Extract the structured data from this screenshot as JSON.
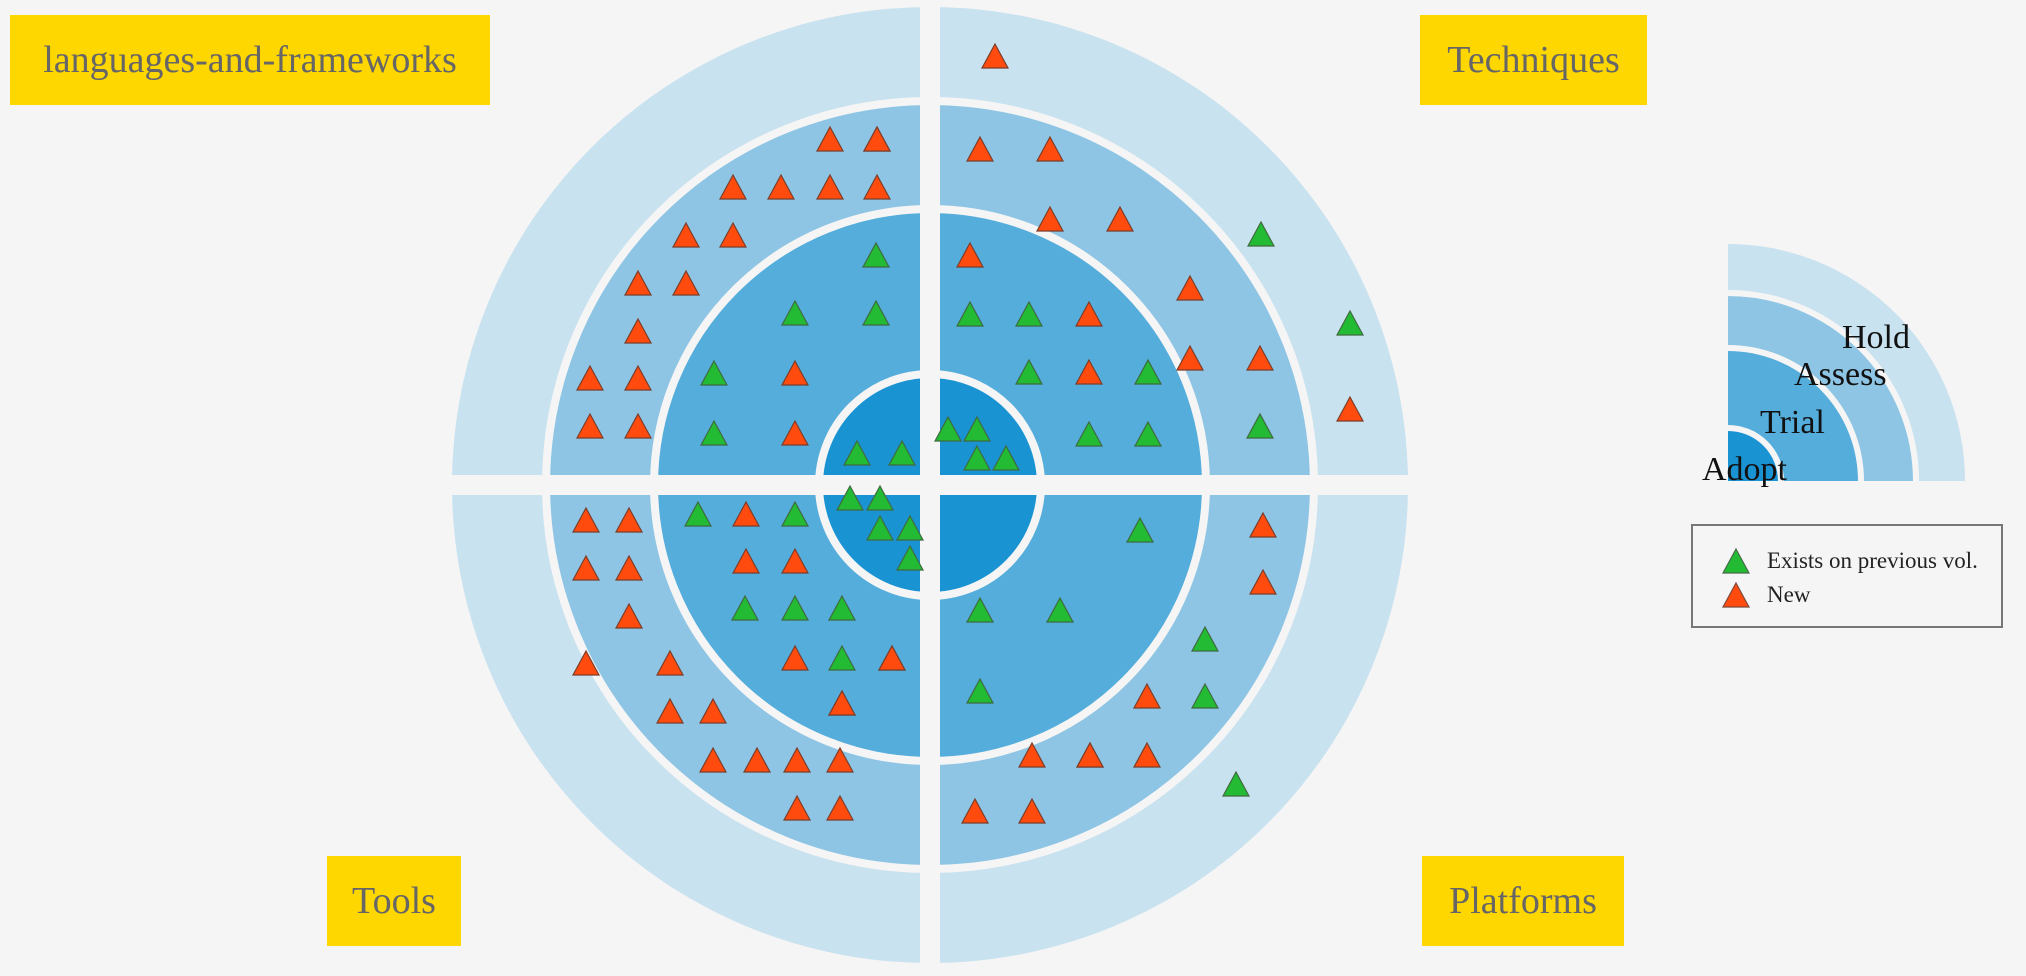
{
  "quadrants": [
    {
      "name": "languages-and-frameworks"
    },
    {
      "name": "Techniques"
    },
    {
      "name": "Tools"
    },
    {
      "name": "Platforms"
    }
  ],
  "rings": [
    {
      "name": "Adopt",
      "color": "#1a93d3"
    },
    {
      "name": "Trial",
      "color": "#55addc"
    },
    {
      "name": "Assess",
      "color": "#8ec5e4"
    },
    {
      "name": "Hold",
      "color": "#c9e2ef"
    }
  ],
  "legend": {
    "items": [
      {
        "label": "Exists on previous vol.",
        "status": "existing",
        "color": "#22bb33"
      },
      {
        "label": "New",
        "status": "new",
        "color": "#ff4b0e"
      }
    ]
  },
  "chart_data": {
    "type": "scatter",
    "description_units": "each blip is placed by quadrant and ring; order within the ring cell is its index",
    "blips": [
      {
        "quadrant": "languages-and-frameworks",
        "ring": "Adopt",
        "status": "existing"
      },
      {
        "quadrant": "languages-and-frameworks",
        "ring": "Adopt",
        "status": "existing"
      },
      {
        "quadrant": "languages-and-frameworks",
        "ring": "Trial",
        "status": "existing"
      },
      {
        "quadrant": "languages-and-frameworks",
        "ring": "Trial",
        "status": "existing"
      },
      {
        "quadrant": "languages-and-frameworks",
        "ring": "Trial",
        "status": "existing"
      },
      {
        "quadrant": "languages-and-frameworks",
        "ring": "Trial",
        "status": "existing"
      },
      {
        "quadrant": "languages-and-frameworks",
        "ring": "Trial",
        "status": "existing"
      },
      {
        "quadrant": "languages-and-frameworks",
        "ring": "Trial",
        "status": "new"
      },
      {
        "quadrant": "languages-and-frameworks",
        "ring": "Trial",
        "status": "new"
      },
      {
        "quadrant": "languages-and-frameworks",
        "ring": "Assess",
        "status": "new"
      },
      {
        "quadrant": "languages-and-frameworks",
        "ring": "Assess",
        "status": "new"
      },
      {
        "quadrant": "languages-and-frameworks",
        "ring": "Assess",
        "status": "new"
      },
      {
        "quadrant": "languages-and-frameworks",
        "ring": "Assess",
        "status": "new"
      },
      {
        "quadrant": "languages-and-frameworks",
        "ring": "Assess",
        "status": "new"
      },
      {
        "quadrant": "languages-and-frameworks",
        "ring": "Assess",
        "status": "new"
      },
      {
        "quadrant": "languages-and-frameworks",
        "ring": "Assess",
        "status": "new"
      },
      {
        "quadrant": "languages-and-frameworks",
        "ring": "Assess",
        "status": "new"
      },
      {
        "quadrant": "languages-and-frameworks",
        "ring": "Assess",
        "status": "new"
      },
      {
        "quadrant": "languages-and-frameworks",
        "ring": "Assess",
        "status": "new"
      },
      {
        "quadrant": "languages-and-frameworks",
        "ring": "Assess",
        "status": "new"
      },
      {
        "quadrant": "languages-and-frameworks",
        "ring": "Assess",
        "status": "new"
      },
      {
        "quadrant": "languages-and-frameworks",
        "ring": "Assess",
        "status": "new"
      },
      {
        "quadrant": "languages-and-frameworks",
        "ring": "Assess",
        "status": "new"
      },
      {
        "quadrant": "languages-and-frameworks",
        "ring": "Assess",
        "status": "new"
      },
      {
        "quadrant": "languages-and-frameworks",
        "ring": "Assess",
        "status": "new"
      },
      {
        "quadrant": "Techniques",
        "ring": "Adopt",
        "status": "existing"
      },
      {
        "quadrant": "Techniques",
        "ring": "Adopt",
        "status": "existing"
      },
      {
        "quadrant": "Techniques",
        "ring": "Adopt",
        "status": "existing"
      },
      {
        "quadrant": "Techniques",
        "ring": "Adopt",
        "status": "existing"
      },
      {
        "quadrant": "Techniques",
        "ring": "Trial",
        "status": "existing"
      },
      {
        "quadrant": "Techniques",
        "ring": "Trial",
        "status": "existing"
      },
      {
        "quadrant": "Techniques",
        "ring": "Trial",
        "status": "existing"
      },
      {
        "quadrant": "Techniques",
        "ring": "Trial",
        "status": "existing"
      },
      {
        "quadrant": "Techniques",
        "ring": "Trial",
        "status": "existing"
      },
      {
        "quadrant": "Techniques",
        "ring": "Trial",
        "status": "existing"
      },
      {
        "quadrant": "Techniques",
        "ring": "Trial",
        "status": "new"
      },
      {
        "quadrant": "Techniques",
        "ring": "Trial",
        "status": "new"
      },
      {
        "quadrant": "Techniques",
        "ring": "Trial",
        "status": "new"
      },
      {
        "quadrant": "Techniques",
        "ring": "Assess",
        "status": "new"
      },
      {
        "quadrant": "Techniques",
        "ring": "Assess",
        "status": "new"
      },
      {
        "quadrant": "Techniques",
        "ring": "Assess",
        "status": "new"
      },
      {
        "quadrant": "Techniques",
        "ring": "Assess",
        "status": "new"
      },
      {
        "quadrant": "Techniques",
        "ring": "Assess",
        "status": "new"
      },
      {
        "quadrant": "Techniques",
        "ring": "Assess",
        "status": "new"
      },
      {
        "quadrant": "Techniques",
        "ring": "Assess",
        "status": "new"
      },
      {
        "quadrant": "Techniques",
        "ring": "Assess",
        "status": "existing"
      },
      {
        "quadrant": "Techniques",
        "ring": "Assess",
        "status": "existing"
      },
      {
        "quadrant": "Techniques",
        "ring": "Hold",
        "status": "new"
      },
      {
        "quadrant": "Techniques",
        "ring": "Hold",
        "status": "existing"
      },
      {
        "quadrant": "Techniques",
        "ring": "Hold",
        "status": "new"
      },
      {
        "quadrant": "Tools",
        "ring": "Adopt",
        "status": "existing"
      },
      {
        "quadrant": "Tools",
        "ring": "Adopt",
        "status": "existing"
      },
      {
        "quadrant": "Tools",
        "ring": "Adopt",
        "status": "existing"
      },
      {
        "quadrant": "Tools",
        "ring": "Adopt",
        "status": "existing"
      },
      {
        "quadrant": "Tools",
        "ring": "Adopt",
        "status": "existing"
      },
      {
        "quadrant": "Tools",
        "ring": "Trial",
        "status": "existing"
      },
      {
        "quadrant": "Tools",
        "ring": "Trial",
        "status": "existing"
      },
      {
        "quadrant": "Tools",
        "ring": "Trial",
        "status": "existing"
      },
      {
        "quadrant": "Tools",
        "ring": "Trial",
        "status": "existing"
      },
      {
        "quadrant": "Tools",
        "ring": "Trial",
        "status": "existing"
      },
      {
        "quadrant": "Tools",
        "ring": "Trial",
        "status": "existing"
      },
      {
        "quadrant": "Tools",
        "ring": "Trial",
        "status": "existing"
      },
      {
        "quadrant": "Tools",
        "ring": "Trial",
        "status": "new"
      },
      {
        "quadrant": "Tools",
        "ring": "Trial",
        "status": "new"
      },
      {
        "quadrant": "Tools",
        "ring": "Trial",
        "status": "new"
      },
      {
        "quadrant": "Tools",
        "ring": "Trial",
        "status": "new"
      },
      {
        "quadrant": "Tools",
        "ring": "Trial",
        "status": "new"
      },
      {
        "quadrant": "Tools",
        "ring": "Trial",
        "status": "new"
      },
      {
        "quadrant": "Tools",
        "ring": "Trial",
        "status": "new"
      },
      {
        "quadrant": "Tools",
        "ring": "Assess",
        "status": "new"
      },
      {
        "quadrant": "Tools",
        "ring": "Assess",
        "status": "new"
      },
      {
        "quadrant": "Tools",
        "ring": "Assess",
        "status": "new"
      },
      {
        "quadrant": "Tools",
        "ring": "Assess",
        "status": "new"
      },
      {
        "quadrant": "Tools",
        "ring": "Assess",
        "status": "new"
      },
      {
        "quadrant": "Tools",
        "ring": "Assess",
        "status": "new"
      },
      {
        "quadrant": "Tools",
        "ring": "Assess",
        "status": "new"
      },
      {
        "quadrant": "Tools",
        "ring": "Assess",
        "status": "new"
      },
      {
        "quadrant": "Tools",
        "ring": "Assess",
        "status": "new"
      },
      {
        "quadrant": "Tools",
        "ring": "Assess",
        "status": "new"
      },
      {
        "quadrant": "Tools",
        "ring": "Assess",
        "status": "new"
      },
      {
        "quadrant": "Tools",
        "ring": "Assess",
        "status": "new"
      },
      {
        "quadrant": "Tools",
        "ring": "Assess",
        "status": "new"
      },
      {
        "quadrant": "Tools",
        "ring": "Assess",
        "status": "new"
      },
      {
        "quadrant": "Tools",
        "ring": "Assess",
        "status": "new"
      },
      {
        "quadrant": "Platforms",
        "ring": "Trial",
        "status": "existing"
      },
      {
        "quadrant": "Platforms",
        "ring": "Trial",
        "status": "existing"
      },
      {
        "quadrant": "Platforms",
        "ring": "Trial",
        "status": "existing"
      },
      {
        "quadrant": "Platforms",
        "ring": "Trial",
        "status": "existing"
      },
      {
        "quadrant": "Platforms",
        "ring": "Assess",
        "status": "new"
      },
      {
        "quadrant": "Platforms",
        "ring": "Assess",
        "status": "new"
      },
      {
        "quadrant": "Platforms",
        "ring": "Assess",
        "status": "existing"
      },
      {
        "quadrant": "Platforms",
        "ring": "Assess",
        "status": "existing"
      },
      {
        "quadrant": "Platforms",
        "ring": "Assess",
        "status": "new"
      },
      {
        "quadrant": "Platforms",
        "ring": "Assess",
        "status": "new"
      },
      {
        "quadrant": "Platforms",
        "ring": "Assess",
        "status": "new"
      },
      {
        "quadrant": "Platforms",
        "ring": "Assess",
        "status": "new"
      },
      {
        "quadrant": "Platforms",
        "ring": "Assess",
        "status": "new"
      },
      {
        "quadrant": "Platforms",
        "ring": "Assess",
        "status": "new"
      },
      {
        "quadrant": "Platforms",
        "ring": "Assess",
        "status": "new"
      },
      {
        "quadrant": "Platforms",
        "ring": "Hold",
        "status": "existing"
      }
    ]
  }
}
